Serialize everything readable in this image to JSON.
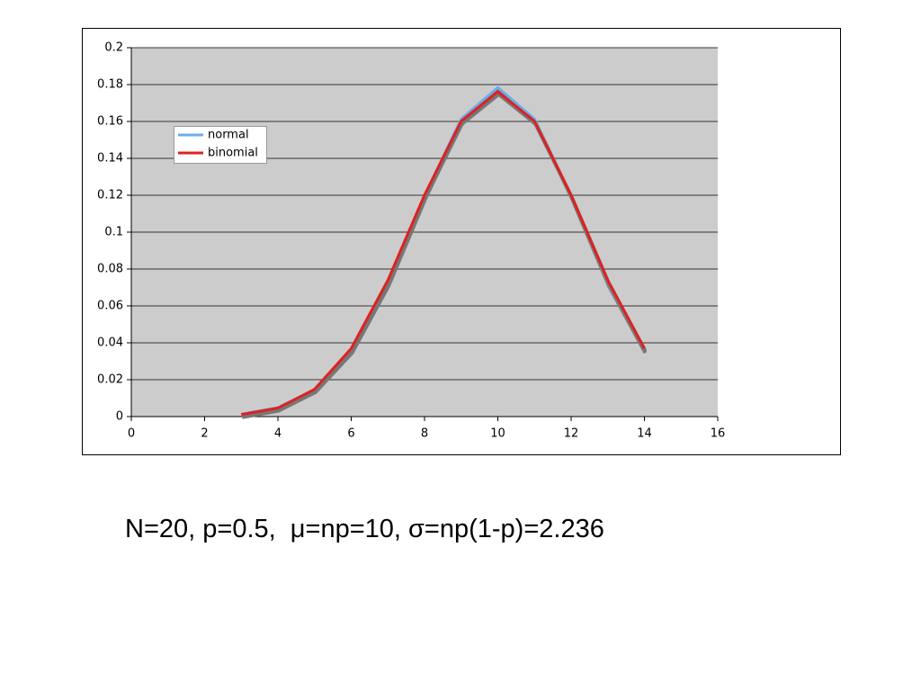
{
  "chart_data": {
    "type": "line",
    "annotation": "N=20, p=0.5,  μ=np=10, σ=np(1-p)=2.236",
    "x": [
      3,
      4,
      5,
      6,
      7,
      8,
      9,
      10,
      11,
      12,
      13,
      14
    ],
    "series": [
      {
        "name": "normal",
        "color": "#6aaee8",
        "values": [
          0.00133,
          0.00487,
          0.01464,
          0.036,
          0.0725,
          0.1196,
          0.1614,
          0.1784,
          0.1614,
          0.1196,
          0.0725,
          0.036
        ]
      },
      {
        "name": "binomial",
        "color": "#e02020",
        "values": [
          0.00109,
          0.00462,
          0.01479,
          0.03696,
          0.07393,
          0.12013,
          0.16018,
          0.1762,
          0.16018,
          0.12013,
          0.07393,
          0.03696
        ]
      }
    ],
    "xlim": [
      0,
      16
    ],
    "xticks": [
      0,
      2,
      4,
      6,
      8,
      10,
      12,
      14,
      16
    ],
    "ylim": [
      0,
      0.2
    ],
    "yticks": [
      0,
      0.02,
      0.04,
      0.06,
      0.08,
      0.1,
      0.12,
      0.14,
      0.16,
      0.18,
      0.2
    ],
    "grid": true,
    "legend": "upper left"
  }
}
